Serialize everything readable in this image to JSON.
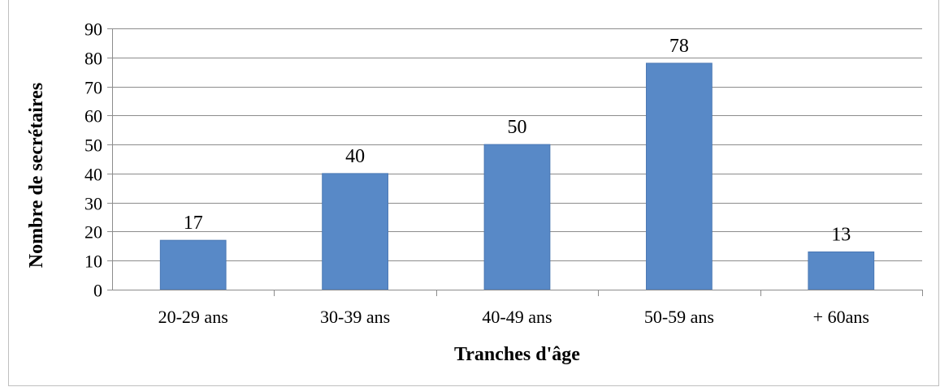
{
  "chart_data": {
    "type": "bar",
    "categories": [
      "20-29 ans",
      "30-39 ans",
      "40-49 ans",
      "50-59 ans",
      "+ 60ans"
    ],
    "values": [
      17,
      40,
      50,
      78,
      13
    ],
    "data_labels": [
      "17",
      "40",
      "50",
      "78",
      "13"
    ],
    "title": "",
    "xlabel": "Tranches d'âge",
    "ylabel": "Nombre de secrétaires",
    "ylim": [
      0,
      90
    ],
    "yticks": [
      0,
      10,
      20,
      30,
      40,
      50,
      60,
      70,
      80,
      90
    ],
    "ytick_labels": [
      "0",
      "10",
      "20",
      "30",
      "40",
      "50",
      "60",
      "70",
      "80",
      "90"
    ],
    "grid": true,
    "legend": "none",
    "colors": {
      "bar": "#5889C7",
      "bar_edge": "#4A78B4",
      "grid": "#8C8C8C",
      "axis": "#8C8C8C"
    }
  }
}
